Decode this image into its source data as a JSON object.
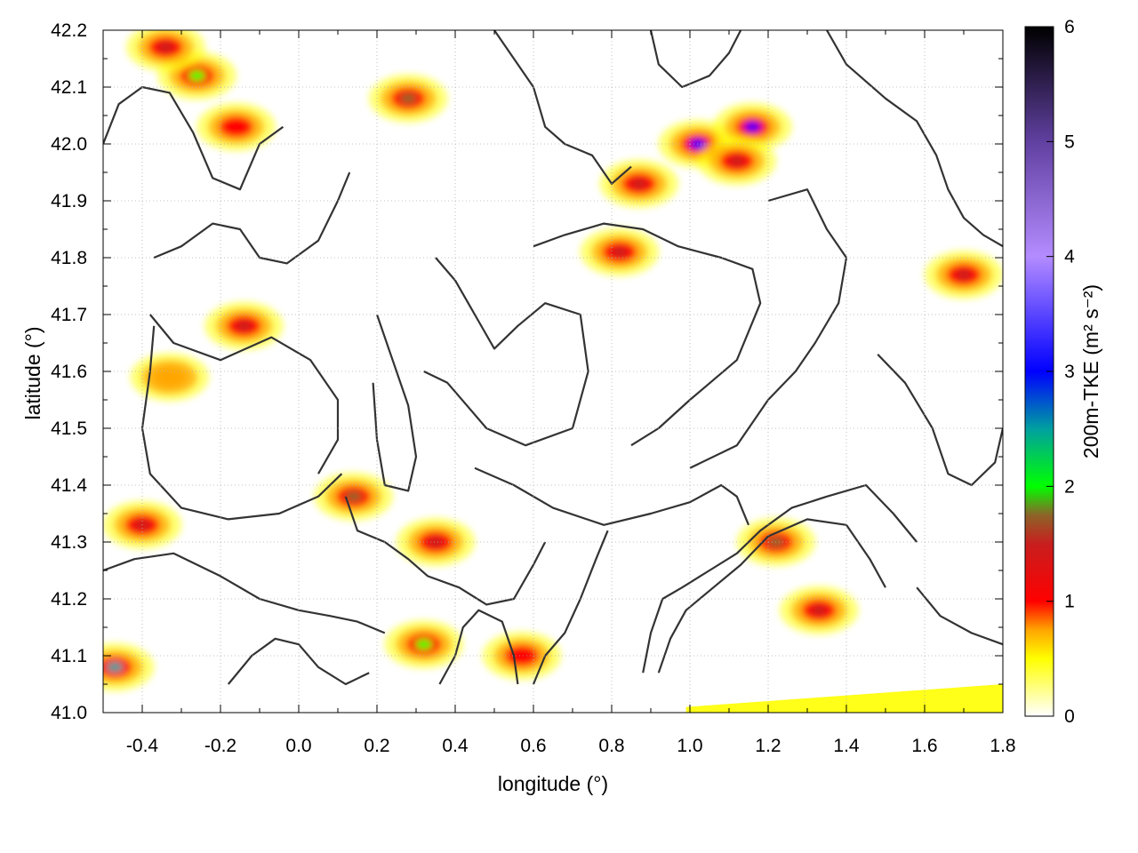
{
  "chart_data": {
    "type": "heatmap",
    "xlabel": "longitude (°)",
    "ylabel": "latitude (°)",
    "xlim": [
      -0.5,
      1.8
    ],
    "ylim": [
      41.0,
      42.2
    ],
    "x_ticks": [
      -0.4,
      -0.2,
      0.0,
      0.2,
      0.4,
      0.6,
      0.8,
      1.0,
      1.2,
      1.4,
      1.6,
      1.8
    ],
    "x_tick_labels": [
      "-0.4",
      "-0.2",
      "0.0",
      "0.2",
      "0.4",
      "0.6",
      "0.8",
      "1.0",
      "1.2",
      "1.4",
      "1.6",
      "1.8"
    ],
    "y_ticks": [
      41.0,
      41.1,
      41.2,
      41.3,
      41.4,
      41.5,
      41.6,
      41.7,
      41.8,
      41.9,
      42.0,
      42.1,
      42.2
    ],
    "y_tick_labels": [
      "41.0",
      "41.1",
      "41.2",
      "41.3",
      "41.4",
      "41.5",
      "41.6",
      "41.7",
      "41.8",
      "41.9",
      "42.0",
      "42.1",
      "42.2"
    ],
    "grid": true,
    "colorbar": {
      "label": "200m-TKE (m² s⁻²)",
      "range": [
        0,
        6
      ],
      "ticks": [
        0,
        1,
        2,
        3,
        4,
        5,
        6
      ],
      "tick_labels": [
        "0",
        "1",
        "2",
        "3",
        "4",
        "5",
        "6"
      ],
      "colors": [
        {
          "value": 0.0,
          "color": "#ffffff"
        },
        {
          "value": 0.5,
          "color": "#ffff00"
        },
        {
          "value": 0.75,
          "color": "#ffa500"
        },
        {
          "value": 1.0,
          "color": "#ff0000"
        },
        {
          "value": 1.5,
          "color": "#c81e1e"
        },
        {
          "value": 1.75,
          "color": "#8c6428"
        },
        {
          "value": 2.0,
          "color": "#00ff00"
        },
        {
          "value": 2.5,
          "color": "#00a0a0"
        },
        {
          "value": 3.0,
          "color": "#0000ff"
        },
        {
          "value": 4.0,
          "color": "#b48cff"
        },
        {
          "value": 5.0,
          "color": "#6040a0"
        },
        {
          "value": 6.0,
          "color": "#000000"
        }
      ]
    },
    "hotspots": [
      {
        "lon": -0.26,
        "lat": 42.12,
        "value": 1.9
      },
      {
        "lon": -0.34,
        "lat": 42.17,
        "value": 1.3
      },
      {
        "lon": -0.16,
        "lat": 42.03,
        "value": 0.9
      },
      {
        "lon": 0.28,
        "lat": 42.08,
        "value": 1.6
      },
      {
        "lon": 0.82,
        "lat": 41.81,
        "value": 1.4
      },
      {
        "lon": 0.87,
        "lat": 41.93,
        "value": 1.2
      },
      {
        "lon": 1.02,
        "lat": 42.0,
        "value": 2.8
      },
      {
        "lon": 1.16,
        "lat": 42.03,
        "value": 2.9
      },
      {
        "lon": 1.12,
        "lat": 41.97,
        "value": 1.3
      },
      {
        "lon": 1.7,
        "lat": 41.77,
        "value": 1.2
      },
      {
        "lon": -0.47,
        "lat": 41.08,
        "value": 2.3
      },
      {
        "lon": -0.4,
        "lat": 41.33,
        "value": 1.2
      },
      {
        "lon": 0.14,
        "lat": 41.38,
        "value": 1.7
      },
      {
        "lon": 0.35,
        "lat": 41.3,
        "value": 1.1
      },
      {
        "lon": 0.32,
        "lat": 41.12,
        "value": 1.9
      },
      {
        "lon": 1.22,
        "lat": 41.3,
        "value": 1.6
      },
      {
        "lon": 1.33,
        "lat": 41.18,
        "value": 1.1
      },
      {
        "lon": 0.57,
        "lat": 41.1,
        "value": 1.0
      },
      {
        "lon": -0.14,
        "lat": 41.68,
        "value": 1.5
      },
      {
        "lon": -0.33,
        "lat": 41.59,
        "value": 0.7
      }
    ],
    "contour_lines": [
      [
        [
          -0.5,
          42.0
        ],
        [
          -0.46,
          42.07
        ],
        [
          -0.4,
          42.1
        ],
        [
          -0.33,
          42.09
        ],
        [
          -0.27,
          42.02
        ],
        [
          -0.22,
          41.94
        ],
        [
          -0.15,
          41.92
        ],
        [
          -0.1,
          42.0
        ],
        [
          -0.04,
          42.03
        ]
      ],
      [
        [
          -0.37,
          41.8
        ],
        [
          -0.3,
          41.82
        ],
        [
          -0.22,
          41.86
        ],
        [
          -0.15,
          41.85
        ],
        [
          -0.1,
          41.8
        ],
        [
          -0.03,
          41.79
        ],
        [
          0.05,
          41.83
        ],
        [
          0.1,
          41.9
        ],
        [
          0.13,
          41.95
        ]
      ],
      [
        [
          -0.38,
          41.7
        ],
        [
          -0.32,
          41.65
        ],
        [
          -0.2,
          41.62
        ],
        [
          -0.07,
          41.66
        ],
        [
          0.03,
          41.62
        ],
        [
          0.1,
          41.55
        ],
        [
          0.1,
          41.48
        ],
        [
          0.05,
          41.42
        ]
      ],
      [
        [
          -0.37,
          41.68
        ],
        [
          -0.38,
          41.6
        ],
        [
          -0.4,
          41.5
        ],
        [
          -0.38,
          41.42
        ],
        [
          -0.3,
          41.36
        ],
        [
          -0.18,
          41.34
        ],
        [
          -0.05,
          41.35
        ],
        [
          0.05,
          41.38
        ],
        [
          0.11,
          41.42
        ]
      ],
      [
        [
          0.12,
          41.38
        ],
        [
          0.15,
          41.32
        ],
        [
          0.22,
          41.3
        ],
        [
          0.28,
          41.27
        ],
        [
          0.33,
          41.24
        ],
        [
          0.41,
          41.22
        ],
        [
          0.48,
          41.19
        ],
        [
          0.55,
          41.2
        ],
        [
          0.6,
          41.26
        ],
        [
          0.63,
          41.3
        ]
      ],
      [
        [
          -0.5,
          41.25
        ],
        [
          -0.42,
          41.27
        ],
        [
          -0.32,
          41.28
        ],
        [
          -0.2,
          41.24
        ],
        [
          -0.1,
          41.2
        ],
        [
          0.0,
          41.18
        ],
        [
          0.08,
          41.17
        ],
        [
          0.15,
          41.16
        ],
        [
          0.22,
          41.14
        ]
      ],
      [
        [
          0.32,
          41.6
        ],
        [
          0.38,
          41.58
        ],
        [
          0.48,
          41.5
        ],
        [
          0.58,
          41.47
        ],
        [
          0.7,
          41.5
        ],
        [
          0.74,
          41.6
        ],
        [
          0.72,
          41.7
        ],
        [
          0.63,
          41.72
        ],
        [
          0.56,
          41.68
        ],
        [
          0.5,
          41.64
        ],
        [
          0.45,
          41.7
        ],
        [
          0.4,
          41.76
        ],
        [
          0.35,
          41.8
        ]
      ],
      [
        [
          0.6,
          41.82
        ],
        [
          0.68,
          41.84
        ],
        [
          0.78,
          41.86
        ],
        [
          0.88,
          41.85
        ],
        [
          0.97,
          41.82
        ],
        [
          1.08,
          41.8
        ],
        [
          1.16,
          41.78
        ],
        [
          1.18,
          41.72
        ],
        [
          1.12,
          41.62
        ],
        [
          1.0,
          41.55
        ],
        [
          0.92,
          41.5
        ],
        [
          0.85,
          41.47
        ]
      ],
      [
        [
          1.2,
          41.9
        ],
        [
          1.3,
          41.92
        ],
        [
          1.35,
          41.85
        ],
        [
          1.4,
          41.8
        ],
        [
          1.38,
          41.72
        ],
        [
          1.32,
          41.65
        ],
        [
          1.27,
          41.6
        ],
        [
          1.2,
          41.55
        ],
        [
          1.12,
          41.47
        ],
        [
          1.0,
          41.43
        ]
      ],
      [
        [
          0.45,
          41.43
        ],
        [
          0.55,
          41.4
        ],
        [
          0.65,
          41.36
        ],
        [
          0.78,
          41.33
        ],
        [
          0.9,
          41.35
        ],
        [
          1.0,
          41.37
        ],
        [
          1.08,
          41.4
        ],
        [
          1.12,
          41.38
        ],
        [
          1.15,
          41.33
        ]
      ],
      [
        [
          0.88,
          41.07
        ],
        [
          0.9,
          41.14
        ],
        [
          0.93,
          41.2
        ],
        [
          0.98,
          41.22
        ],
        [
          1.05,
          41.25
        ],
        [
          1.12,
          41.28
        ],
        [
          1.18,
          41.32
        ],
        [
          1.26,
          41.36
        ],
        [
          1.35,
          41.38
        ],
        [
          1.45,
          41.4
        ],
        [
          1.52,
          41.35
        ],
        [
          1.58,
          41.3
        ]
      ],
      [
        [
          0.92,
          41.07
        ],
        [
          0.95,
          41.13
        ],
        [
          0.99,
          41.18
        ],
        [
          1.06,
          41.22
        ],
        [
          1.13,
          41.26
        ],
        [
          1.2,
          41.31
        ],
        [
          1.3,
          41.34
        ],
        [
          1.4,
          41.33
        ],
        [
          1.46,
          41.27
        ],
        [
          1.5,
          41.22
        ]
      ],
      [
        [
          0.5,
          42.2
        ],
        [
          0.55,
          42.15
        ],
        [
          0.6,
          42.1
        ],
        [
          0.63,
          42.03
        ],
        [
          0.68,
          42.0
        ],
        [
          0.75,
          41.98
        ],
        [
          0.8,
          41.93
        ],
        [
          0.85,
          41.96
        ]
      ],
      [
        [
          0.9,
          42.2
        ],
        [
          0.92,
          42.14
        ],
        [
          0.98,
          42.1
        ],
        [
          1.05,
          42.12
        ],
        [
          1.1,
          42.16
        ],
        [
          1.13,
          42.2
        ]
      ],
      [
        [
          1.35,
          42.2
        ],
        [
          1.4,
          42.14
        ],
        [
          1.5,
          42.08
        ],
        [
          1.58,
          42.04
        ],
        [
          1.63,
          41.98
        ],
        [
          1.66,
          41.92
        ],
        [
          1.7,
          41.87
        ],
        [
          1.75,
          41.84
        ],
        [
          1.8,
          41.82
        ]
      ],
      [
        [
          1.48,
          41.63
        ],
        [
          1.55,
          41.58
        ],
        [
          1.62,
          41.5
        ],
        [
          1.66,
          41.42
        ],
        [
          1.72,
          41.4
        ],
        [
          1.78,
          41.44
        ],
        [
          1.8,
          41.5
        ]
      ],
      [
        [
          0.2,
          41.7
        ],
        [
          0.24,
          41.62
        ],
        [
          0.28,
          41.54
        ],
        [
          0.3,
          41.45
        ],
        [
          0.28,
          41.39
        ],
        [
          0.22,
          41.4
        ],
        [
          0.2,
          41.48
        ],
        [
          0.19,
          41.58
        ]
      ],
      [
        [
          0.6,
          41.05
        ],
        [
          0.63,
          41.1
        ],
        [
          0.68,
          41.14
        ],
        [
          0.72,
          41.2
        ],
        [
          0.76,
          41.27
        ],
        [
          0.79,
          41.32
        ]
      ],
      [
        [
          0.36,
          41.05
        ],
        [
          0.4,
          41.1
        ],
        [
          0.42,
          41.15
        ],
        [
          0.46,
          41.18
        ],
        [
          0.52,
          41.16
        ],
        [
          0.55,
          41.1
        ],
        [
          0.56,
          41.05
        ]
      ],
      [
        [
          -0.18,
          41.05
        ],
        [
          -0.12,
          41.1
        ],
        [
          -0.06,
          41.13
        ],
        [
          0.0,
          41.12
        ],
        [
          0.05,
          41.08
        ],
        [
          0.12,
          41.05
        ],
        [
          0.18,
          41.07
        ]
      ],
      [
        [
          1.58,
          41.22
        ],
        [
          1.64,
          41.17
        ],
        [
          1.72,
          41.14
        ],
        [
          1.8,
          41.12
        ]
      ]
    ],
    "bottom_band": {
      "lon_start": 0.99,
      "lon_end": 1.8,
      "lat_bottom": 41.0,
      "lat_top_left": 41.01,
      "lat_top_right": 41.05,
      "value": 0.45
    }
  }
}
